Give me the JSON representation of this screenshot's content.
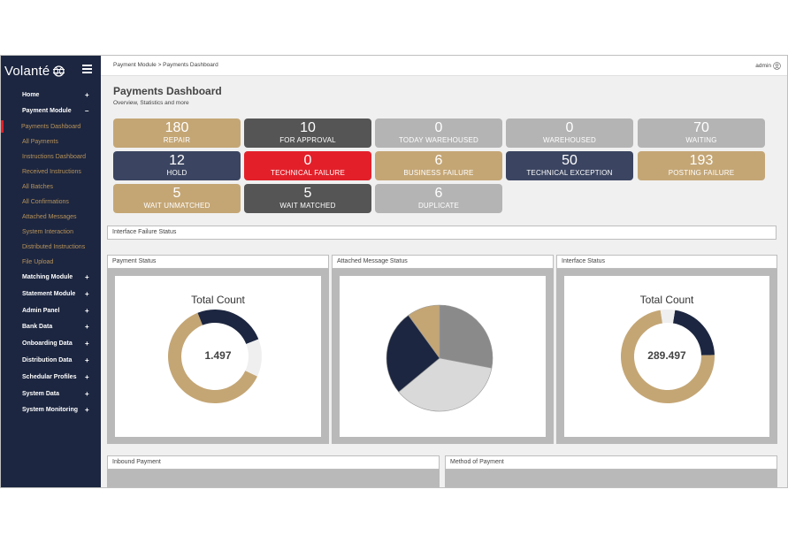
{
  "app": {
    "logo_text": "Volanté"
  },
  "topbar": {
    "breadcrumb": "Payment Module > Payments Dashboard",
    "user": "admin"
  },
  "sidebar": {
    "items": [
      {
        "label": "Home",
        "sign": "+"
      },
      {
        "label": "Payment Module",
        "sign": "–"
      },
      {
        "label": "Payments Dashboard"
      },
      {
        "label": "All Payments"
      },
      {
        "label": "Instructions Dashboard"
      },
      {
        "label": "Received Instructions"
      },
      {
        "label": "All Batches"
      },
      {
        "label": "All Confirmations"
      },
      {
        "label": "Attached Messages"
      },
      {
        "label": "System Interaction"
      },
      {
        "label": "Distributed Instructions"
      },
      {
        "label": "File Upload"
      },
      {
        "label": "Matching Module",
        "sign": "+"
      },
      {
        "label": "Statement Module",
        "sign": "+"
      },
      {
        "label": "Admin Panel",
        "sign": "+"
      },
      {
        "label": "Bank Data",
        "sign": "+"
      },
      {
        "label": "Onboarding Data",
        "sign": "+"
      },
      {
        "label": "Distribution Data",
        "sign": "+"
      },
      {
        "label": "Schedular Profiles",
        "sign": "+"
      },
      {
        "label": "System Data",
        "sign": "+"
      },
      {
        "label": "System Monitoring",
        "sign": "+"
      }
    ]
  },
  "header": {
    "title": "Payments Dashboard",
    "subtitle": "Overview, Statistics and more"
  },
  "tiles": [
    {
      "value": "180",
      "label": "REPAIR",
      "bg": "#c4a675",
      "fg": "#ffffff"
    },
    {
      "value": "10",
      "label": "FOR APPROVAL",
      "bg": "#555555",
      "fg": "#ffffff"
    },
    {
      "value": "0",
      "label": "TODAY WAREHOUSED",
      "bg": "#b4b4b4",
      "fg": "#ffffff"
    },
    {
      "value": "0",
      "label": "WAREHOUSED",
      "bg": "#b4b4b4",
      "fg": "#ffffff"
    },
    {
      "value": "70",
      "label": "WAITING",
      "bg": "#b4b4b4",
      "fg": "#ffffff"
    },
    {
      "value": "12",
      "label": "HOLD",
      "bg": "#3b4561",
      "fg": "#ffffff"
    },
    {
      "value": "0",
      "label": "TECHNICAL FAILURE",
      "bg": "#e3202a",
      "fg": "#ffffff"
    },
    {
      "value": "6",
      "label": "BUSINESS FAILURE",
      "bg": "#c4a675",
      "fg": "#ffffff"
    },
    {
      "value": "50",
      "label": "TECHNICAL EXCEPTION",
      "bg": "#3b4561",
      "fg": "#ffffff"
    },
    {
      "value": "193",
      "label": "POSTING FAILURE",
      "bg": "#c4a675",
      "fg": "#ffffff"
    },
    {
      "value": "5",
      "label": "WAIT UNMATCHED",
      "bg": "#c4a675",
      "fg": "#ffffff"
    },
    {
      "value": "5",
      "label": "WAIT MATCHED",
      "bg": "#555555",
      "fg": "#ffffff"
    },
    {
      "value": "6",
      "label": "DUPLICATE",
      "bg": "#b4b4b4",
      "fg": "#ffffff"
    }
  ],
  "panels": {
    "interface_failure": "Interface Failure Status",
    "payment_status": "Payment Status",
    "attached_message_status": "Attached Message Status",
    "interface_status": "Interface Status",
    "inbound_payment": "Inbound Payment",
    "method_of_payment": "Method of Payment"
  },
  "chart_data": [
    {
      "type": "donut",
      "panel": "Payment Status",
      "title": "Total Count",
      "center_label": "1.497",
      "slices": [
        {
          "value": 62,
          "color": "#c4a675"
        },
        {
          "value": 25,
          "color": "#1c2640"
        },
        {
          "value": 13,
          "color": "#efefef"
        }
      ]
    },
    {
      "type": "pie",
      "panel": "Attached Message Status",
      "title": "",
      "slices": [
        {
          "value": 28,
          "color": "#8a8a8a"
        },
        {
          "value": 36,
          "color": "#d9d9d9"
        },
        {
          "value": 26,
          "color": "#1c2640"
        },
        {
          "value": 10,
          "color": "#c4a675"
        }
      ]
    },
    {
      "type": "donut",
      "panel": "Interface Status",
      "title": "Total Count",
      "center_label": "289.497",
      "slices": [
        {
          "value": 22,
          "color": "#1c2640"
        },
        {
          "value": 73,
          "color": "#c4a675"
        },
        {
          "value": 5,
          "color": "#efefef"
        }
      ]
    }
  ]
}
